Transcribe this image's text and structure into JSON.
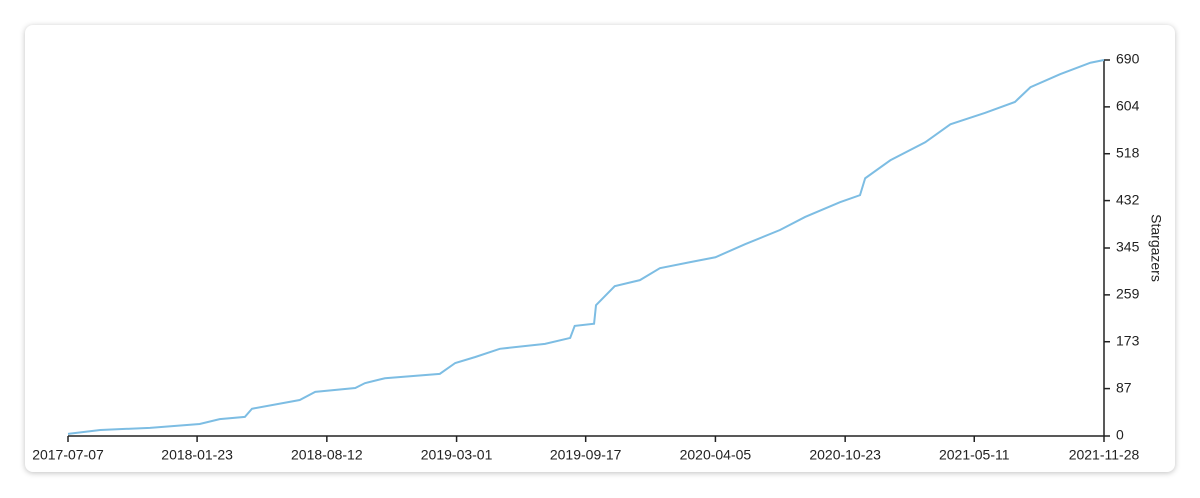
{
  "chart_data": {
    "type": "line",
    "y_axis_label": "Stargazers",
    "x": [
      "2017-07-07",
      "2017-08-26",
      "2017-11-11",
      "2018-01-27",
      "2018-02-27",
      "2018-04-07",
      "2018-04-18",
      "2018-07-01",
      "2018-07-25",
      "2018-09-25",
      "2018-10-10",
      "2018-11-10",
      "2019-02-03",
      "2019-02-27",
      "2019-03-30",
      "2019-05-07",
      "2019-07-16",
      "2019-08-24",
      "2019-08-31",
      "2019-09-30",
      "2019-10-03",
      "2019-11-01",
      "2019-12-10",
      "2020-01-10",
      "2020-02-26",
      "2020-04-05",
      "2020-05-21",
      "2020-07-14",
      "2020-08-22",
      "2020-10-15",
      "2020-11-15",
      "2020-11-23",
      "2021-01-01",
      "2021-02-24",
      "2021-04-04",
      "2021-05-28",
      "2021-07-13",
      "2021-08-06",
      "2021-09-21",
      "2021-11-07",
      "2021-11-28"
    ],
    "series": [
      {
        "color": "#7dbde3",
        "values": [
          4,
          11,
          15,
          22,
          31,
          35,
          50,
          66,
          81,
          88,
          97,
          106,
          114,
          134,
          145,
          160,
          169,
          180,
          202,
          206,
          240,
          275,
          286,
          308,
          319,
          328,
          352,
          378,
          402,
          429,
          442,
          473,
          506,
          539,
          572,
          593,
          613,
          640,
          664,
          685,
          690
        ]
      }
    ],
    "xlim": [
      "2017-07-07",
      "2021-11-28"
    ],
    "xticks": [
      "2017-07-07",
      "2018-01-23",
      "2018-08-12",
      "2019-03-01",
      "2019-09-17",
      "2020-04-05",
      "2020-10-23",
      "2021-05-11",
      "2021-11-28"
    ],
    "ylim": [
      0,
      690
    ],
    "yticks": [
      0,
      87,
      173,
      259,
      345,
      432,
      518,
      604,
      690
    ],
    "y_axis_side": "right"
  }
}
